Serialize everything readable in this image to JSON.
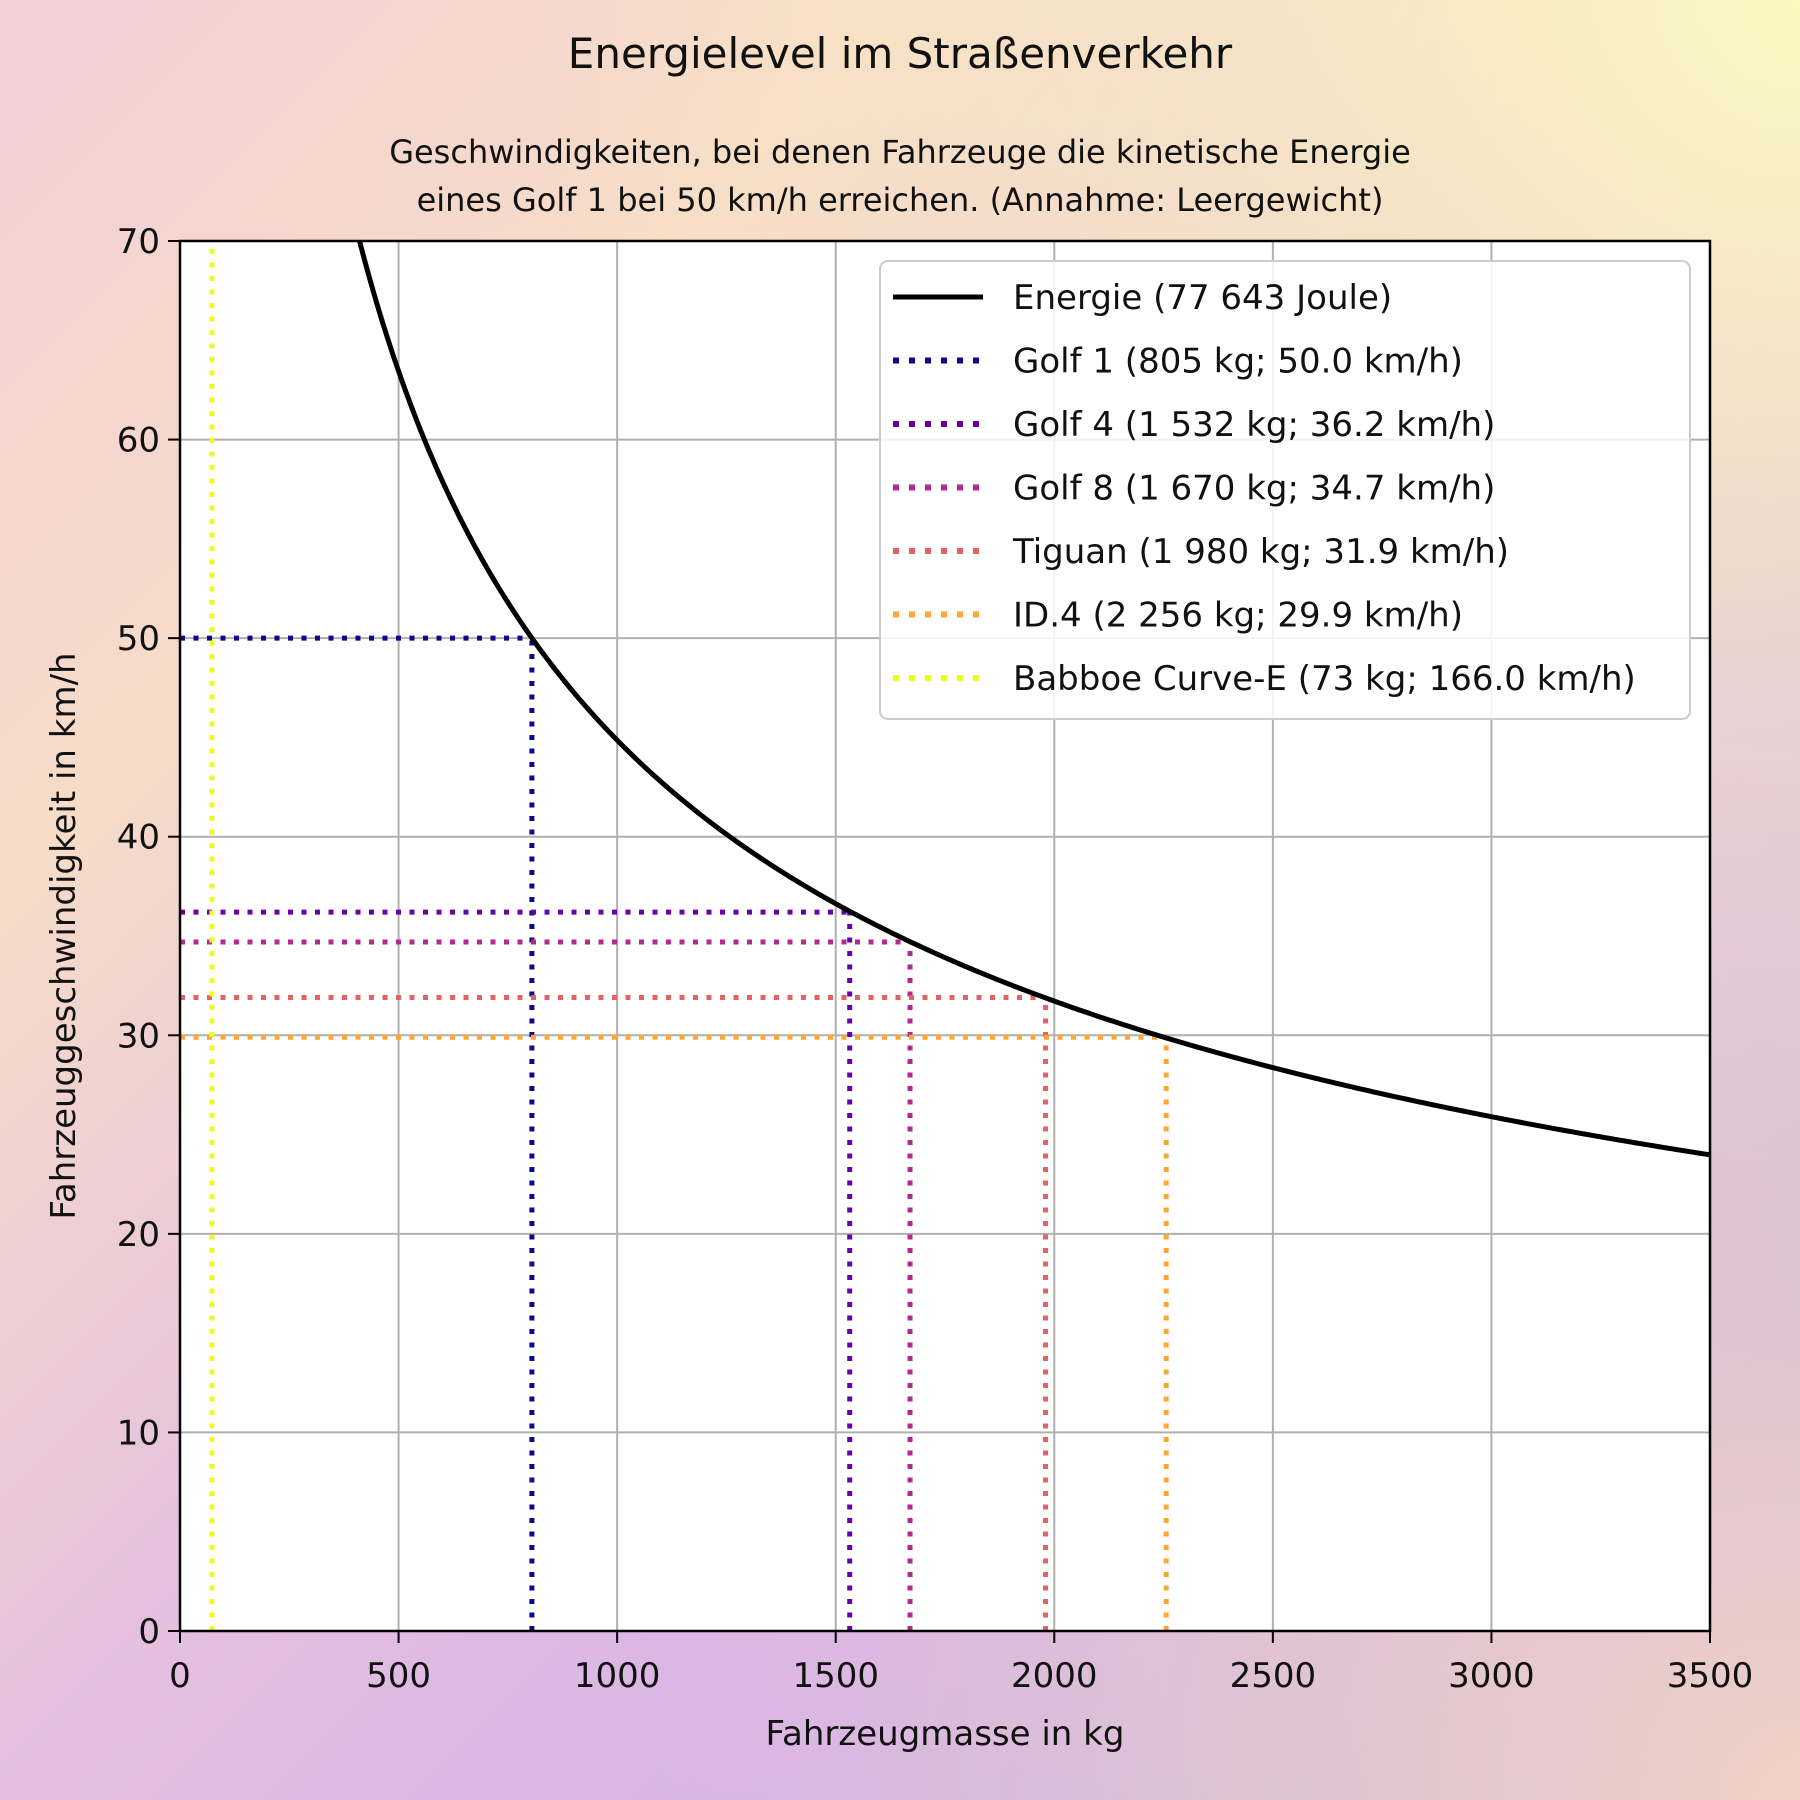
{
  "chart_data": {
    "type": "line",
    "title": "Energielevel im Straßenverkehr",
    "subtitle_line1": "Geschwindigkeiten, bei denen Fahrzeuge die kinetische Energie",
    "subtitle_line2": "eines Golf 1 bei 50 km/h erreichen. (Annahme: Leergewicht)",
    "xlabel": "Fahrzeugmasse in kg",
    "ylabel": "Fahrzeuggeschwindigkeit in km/h",
    "xlim": [
      0,
      3500
    ],
    "ylim": [
      0,
      70
    ],
    "xticks": [
      "0",
      "500",
      "1000",
      "1500",
      "2000",
      "2500",
      "3000",
      "3500"
    ],
    "yticks": [
      "0",
      "10",
      "20",
      "30",
      "40",
      "50",
      "60",
      "70"
    ],
    "grid": true,
    "legend_position": "top-right",
    "energy_curve": {
      "name": "Energie (77 643 Joule)",
      "color": "#000000",
      "energy_joule": 77643
    },
    "vehicles": [
      {
        "name": "Golf 1 (805 kg; 50.0 km/h)",
        "mass": 805,
        "speed": 50.0,
        "color": "#0d0887"
      },
      {
        "name": "Golf 4 (1 532 kg; 36.2 km/h)",
        "mass": 1532,
        "speed": 36.2,
        "color": "#6a00a8"
      },
      {
        "name": "Golf 8 (1 670 kg; 34.7 km/h)",
        "mass": 1670,
        "speed": 34.7,
        "color": "#b12a90"
      },
      {
        "name": "Tiguan (1 980 kg; 31.9 km/h)",
        "mass": 1980,
        "speed": 31.9,
        "color": "#e16462"
      },
      {
        "name": "ID.4 (2 256 kg; 29.9 km/h)",
        "mass": 2256,
        "speed": 29.9,
        "color": "#fca636"
      },
      {
        "name": "Babboe Curve-E (73 kg; 166.0 km/h)",
        "mass": 73,
        "speed": 166.0,
        "color": "#f0f921"
      }
    ]
  }
}
